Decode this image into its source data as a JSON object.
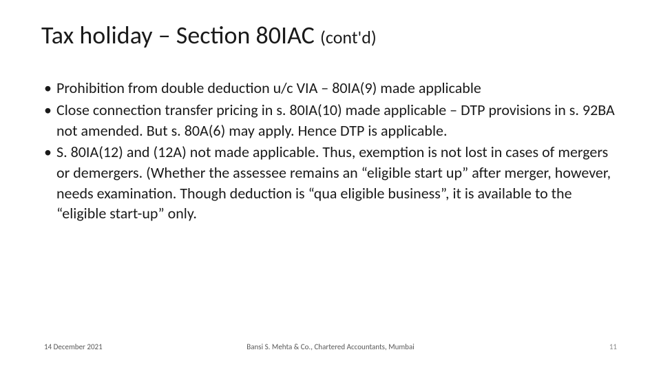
{
  "slide": {
    "title_main": "Tax holiday – Section 80IAC ",
    "title_suffix": "(cont'd)",
    "bullets": [
      "Prohibition from double deduction u/c VIA – 80IA(9) made applicable",
      "Close connection transfer pricing in s. 80IA(10) made applicable – DTP provisions in s. 92BA not amended. But s. 80A(6) may apply. Hence DTP is applicable.",
      "S. 80IA(12) and (12A) not made applicable. Thus, exemption is not lost in cases of mergers or demergers. (Whether the assessee remains an “eligible start up” after merger, however, needs examination. Though deduction is “qua eligible business”, it is available to the “eligible start-up” only."
    ]
  },
  "footer": {
    "date": "14 December 2021",
    "center": "Bansi S. Mehta & Co., Chartered Accountants, Mumbai",
    "page": "11"
  },
  "style": {
    "background_color": "#ffffff",
    "title_color": "#1a1a1a",
    "body_text_color": "#1a1a1a",
    "footer_text_color": "#595959",
    "page_number_color": "#8a8a8a",
    "title_fontsize": 36,
    "title_suffix_fontsize": 26,
    "body_fontsize": 22,
    "footer_fontsize": 11,
    "font_family": "Calibri"
  }
}
